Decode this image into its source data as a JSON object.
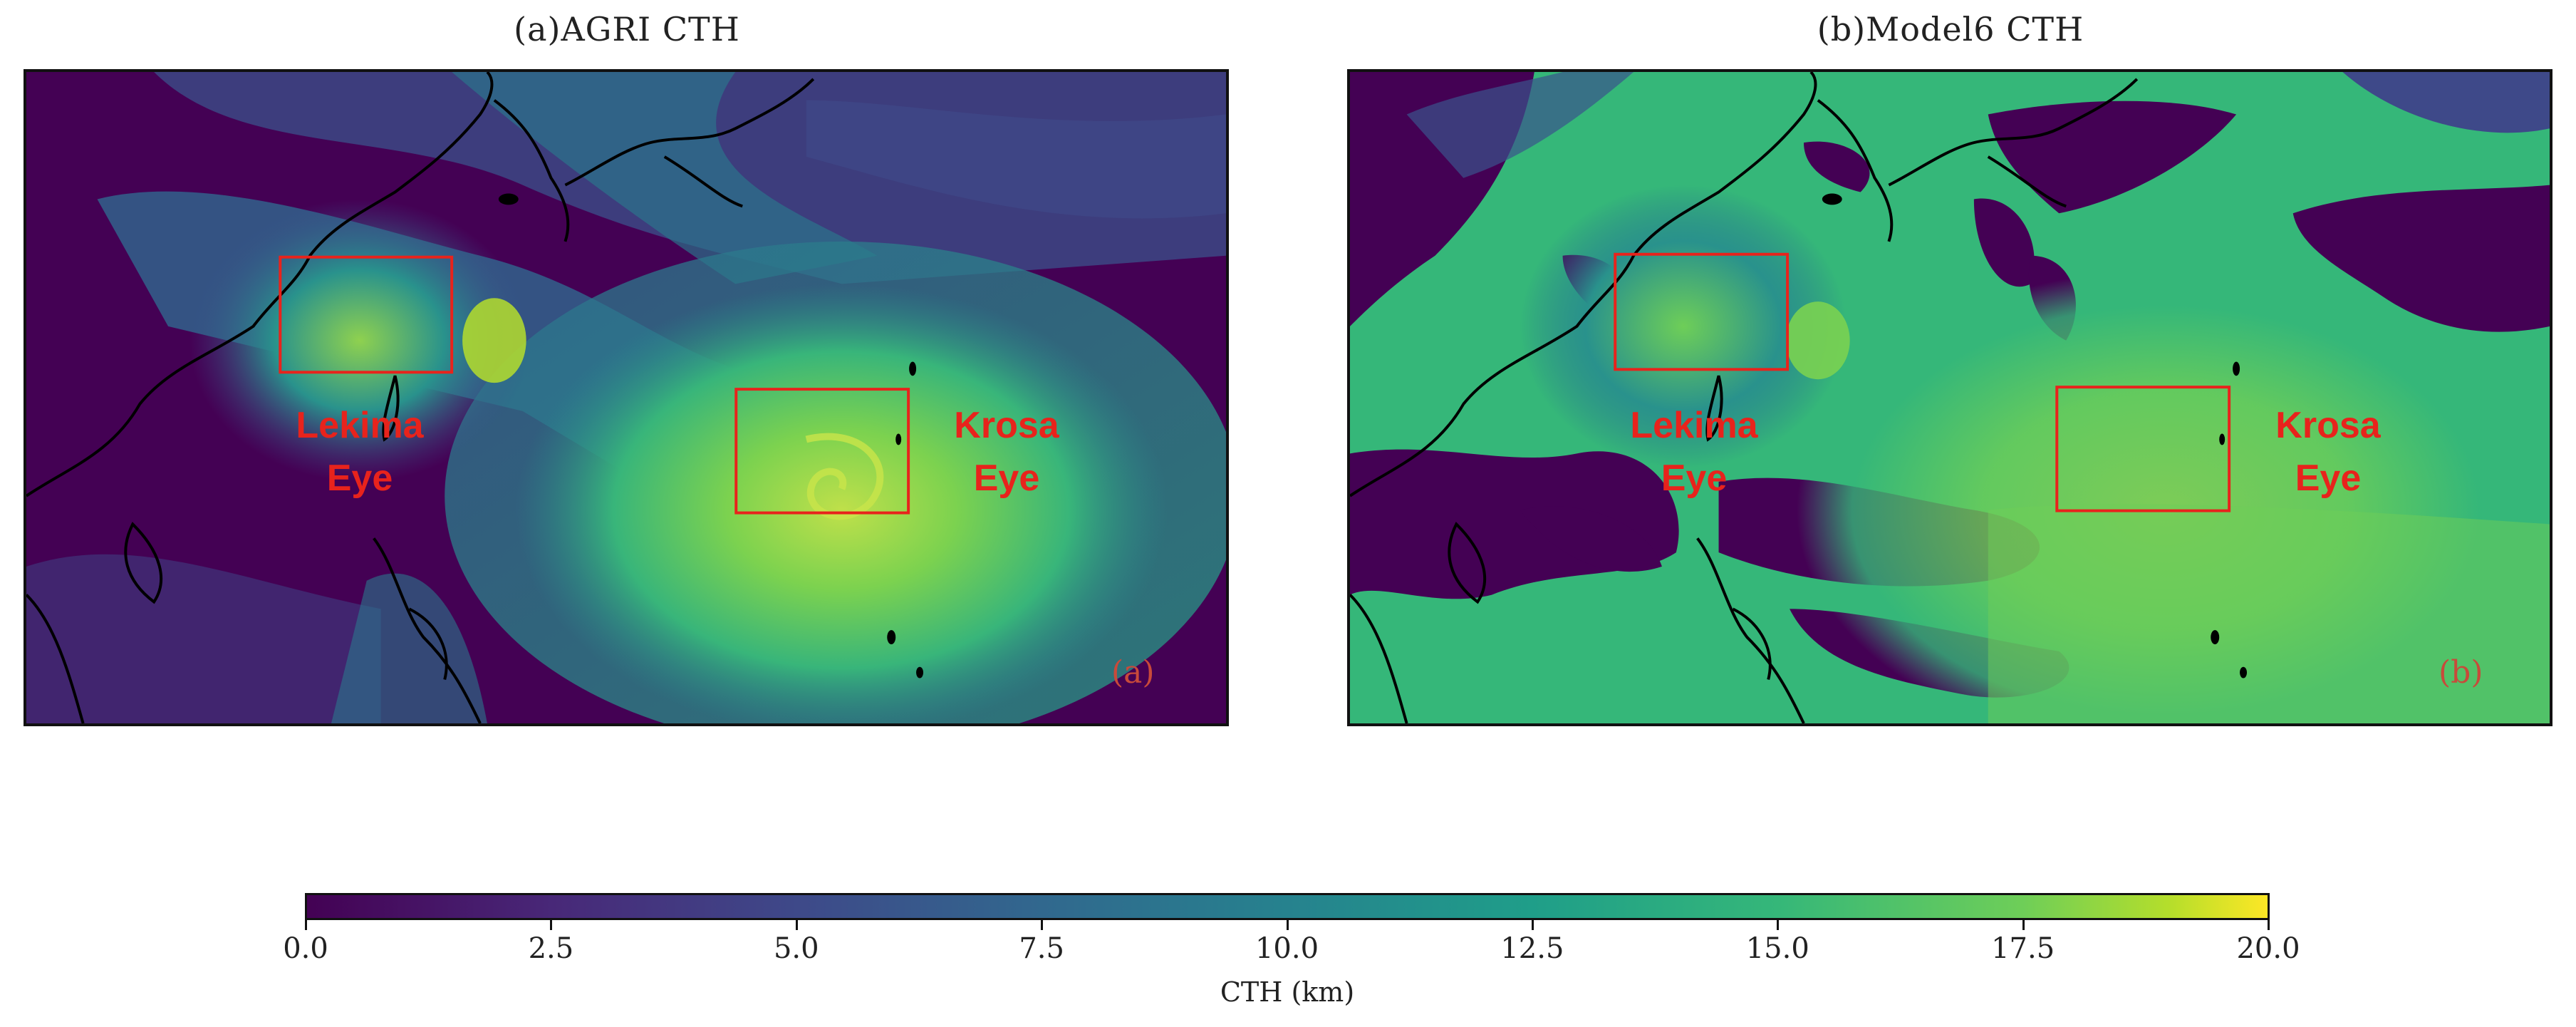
{
  "panels": [
    {
      "title": "(a)AGRI CTH",
      "corner": "(a)",
      "lekima_label": [
        "Lekima",
        "Eye"
      ],
      "krosa_label": [
        "Krosa",
        "Eye"
      ]
    },
    {
      "title": "(b)Model6 CTH",
      "corner": "(b)",
      "lekima_label": [
        "Lekima",
        "Eye"
      ],
      "krosa_label": [
        "Krosa",
        "Eye"
      ]
    }
  ],
  "colorbar": {
    "ticks": [
      "0.0",
      "2.5",
      "5.0",
      "7.5",
      "10.0",
      "12.5",
      "15.0",
      "17.5",
      "20.0"
    ],
    "label": "CTH (km)",
    "colormap": "viridis",
    "range": [
      0,
      20
    ]
  },
  "colors": {
    "box": "#e8231c",
    "annotation": "#e8231c",
    "coastline": "#000000"
  }
}
